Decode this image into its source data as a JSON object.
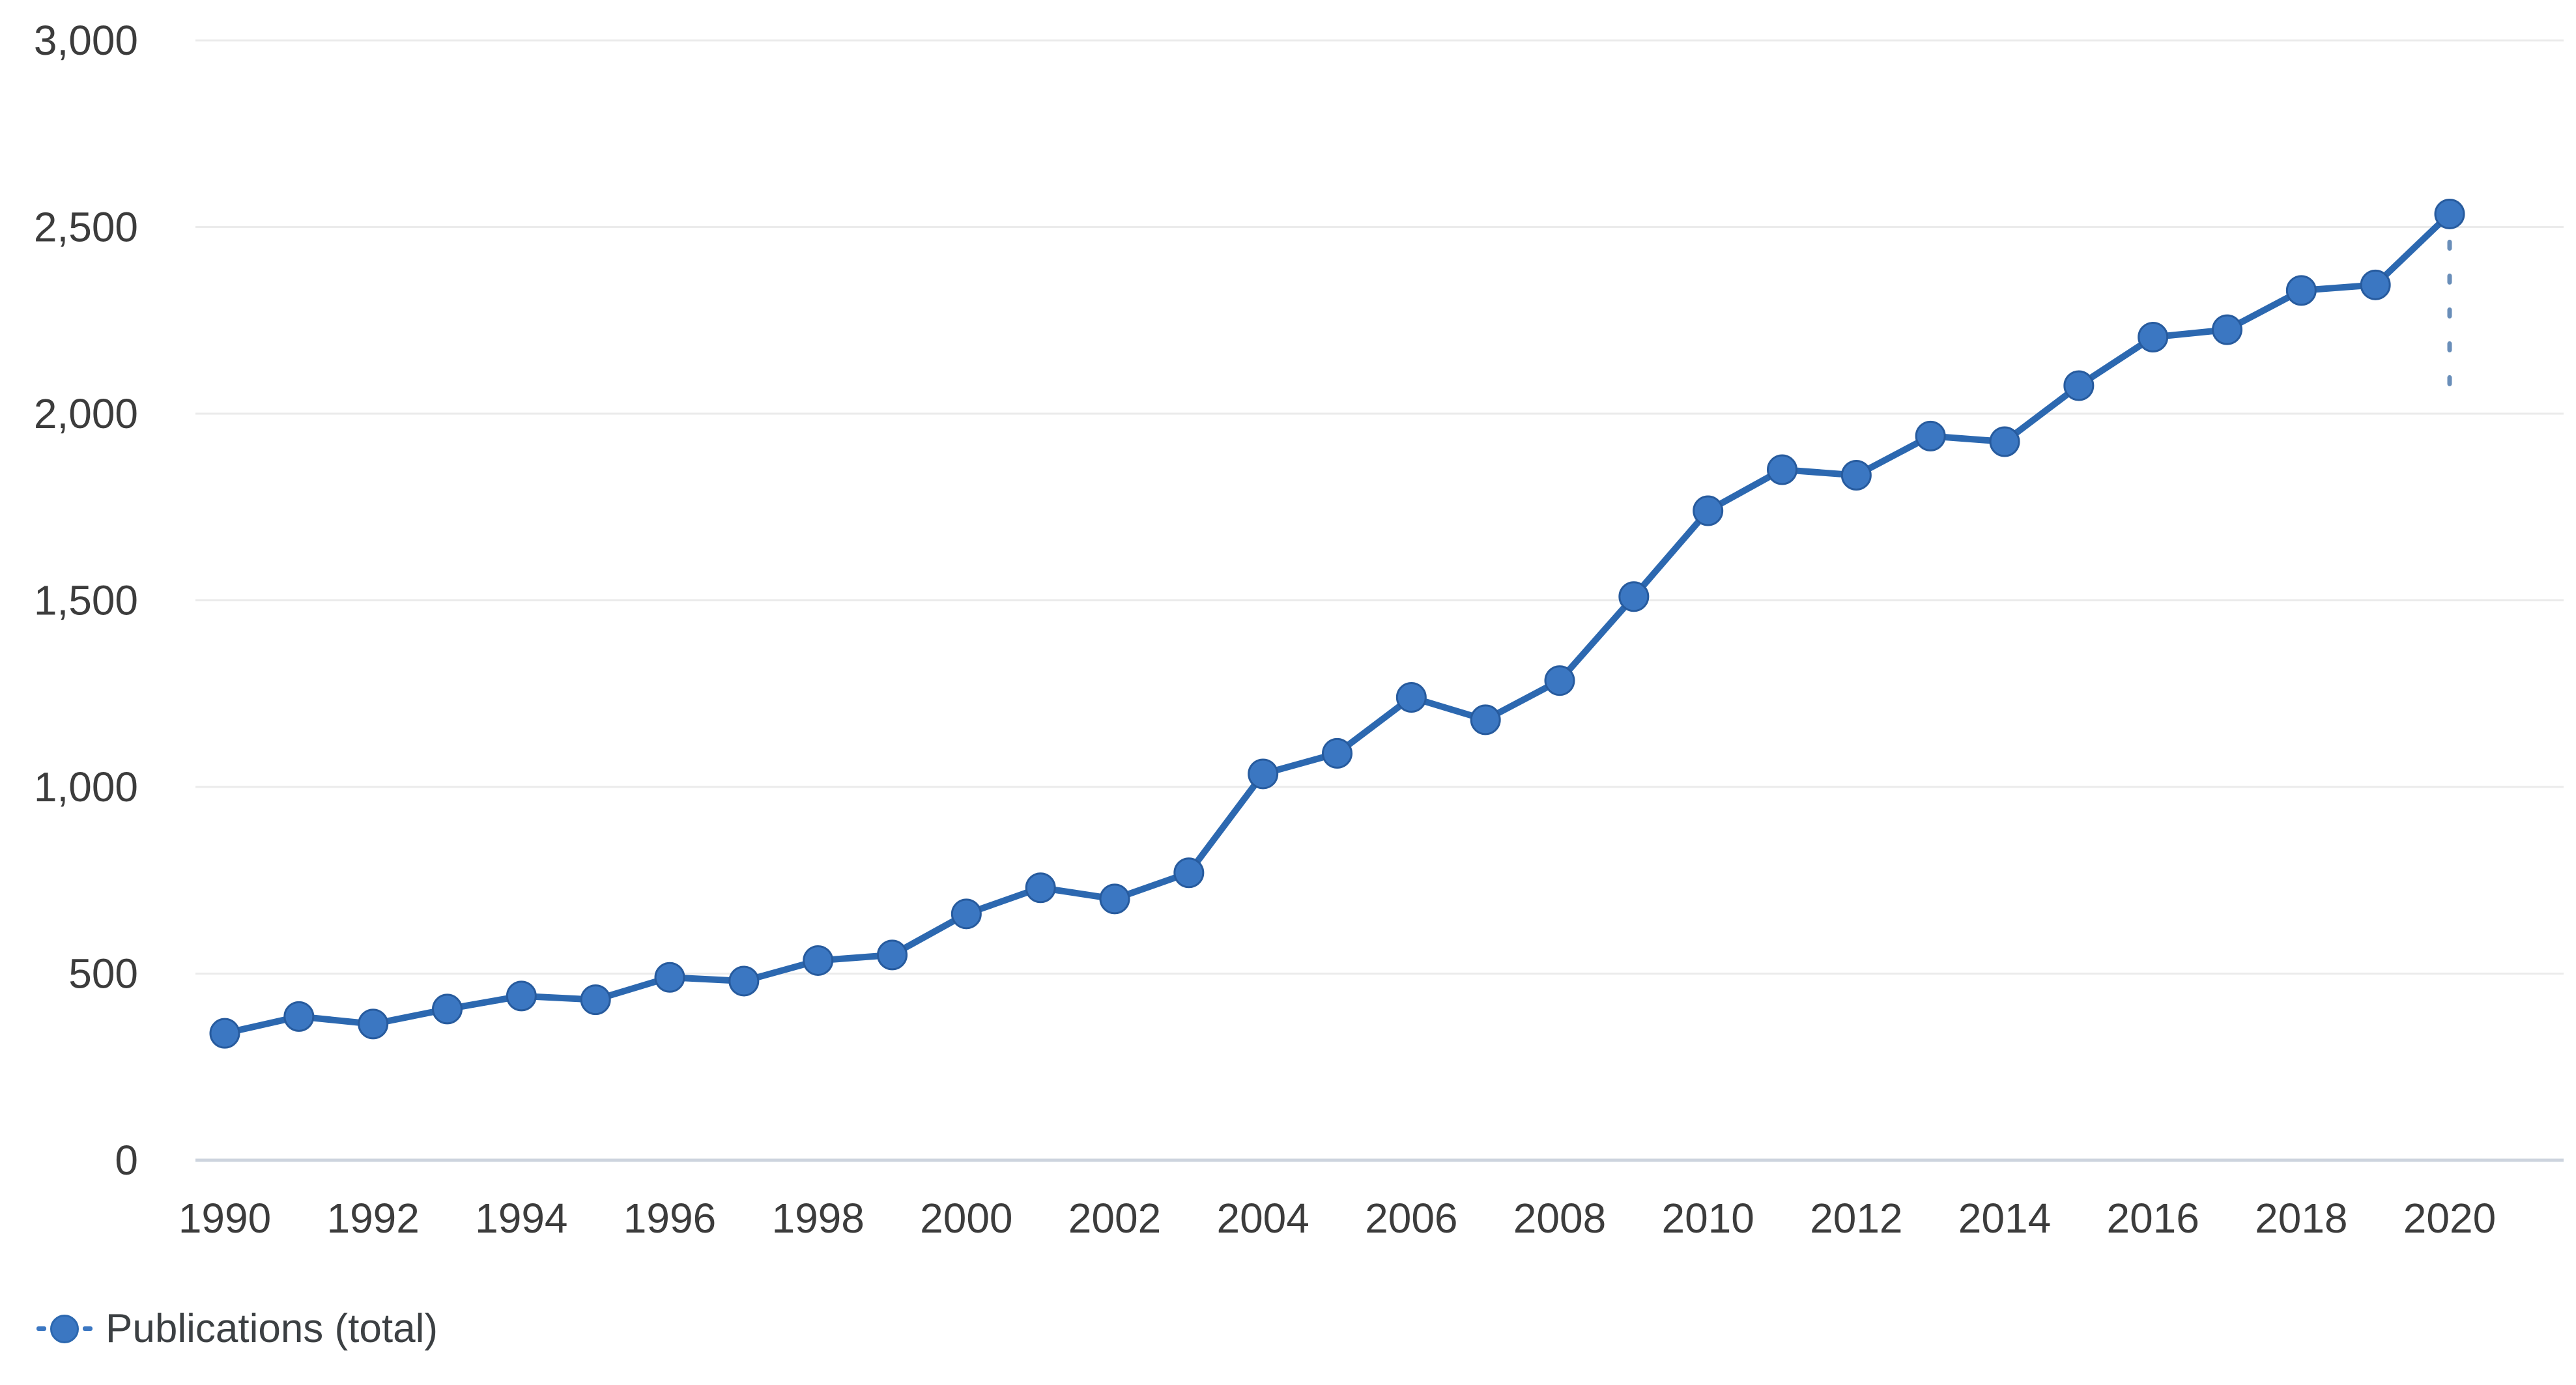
{
  "chart_data": {
    "type": "line",
    "title": "",
    "xlabel": "",
    "ylabel": "",
    "grid": "horizontal",
    "ylim": [
      0,
      3000
    ],
    "xlim": [
      1989.6,
      2021.6
    ],
    "y_ticks": [
      0,
      500,
      1000,
      1500,
      2000,
      2500,
      3000
    ],
    "y_tick_labels": [
      "0",
      "500",
      "1,000",
      "1,500",
      "2,000",
      "2,500",
      "3,000"
    ],
    "x_ticks": [
      1990,
      1992,
      1994,
      1996,
      1998,
      2000,
      2002,
      2004,
      2006,
      2008,
      2010,
      2012,
      2014,
      2016,
      2018,
      2020
    ],
    "x_tick_labels": [
      "1990",
      "1992",
      "1994",
      "1996",
      "1998",
      "2000",
      "2002",
      "2004",
      "2006",
      "2008",
      "2010",
      "2012",
      "2014",
      "2016",
      "2018",
      "2020"
    ],
    "series": [
      {
        "name": "Publications (total)",
        "marker": "circle",
        "color": "#3b77c2",
        "line_color": "#2c68b0",
        "marker_edge_color": "#275b9e",
        "x": [
          1990,
          1991,
          1992,
          1993,
          1994,
          1995,
          1996,
          1997,
          1998,
          1999,
          2000,
          2001,
          2002,
          2003,
          2004,
          2005,
          2006,
          2007,
          2008,
          2009,
          2010,
          2011,
          2012,
          2013,
          2014,
          2015,
          2016,
          2017,
          2018,
          2019,
          2020
        ],
        "values": [
          340,
          385,
          365,
          405,
          440,
          430,
          490,
          480,
          535,
          550,
          660,
          730,
          700,
          770,
          1035,
          1090,
          1240,
          1180,
          1285,
          1510,
          1740,
          1850,
          1835,
          1940,
          1925,
          2075,
          2205,
          2225,
          2330,
          2345,
          2535
        ]
      }
    ],
    "annotations": [
      {
        "type": "dashed_drop_line",
        "x": 2020,
        "value_from": 2460,
        "value_to": 2060
      }
    ],
    "legend": {
      "position": "bottom-left",
      "label": "Publications (total)"
    }
  },
  "colors": {
    "background": "#ffffff",
    "gridline": "#ebebeb",
    "axis_line": "#cdd4de",
    "tick_text": "#3c3c3c",
    "legend_text": "#3c4043",
    "accent_blue": "#3b77c2"
  }
}
